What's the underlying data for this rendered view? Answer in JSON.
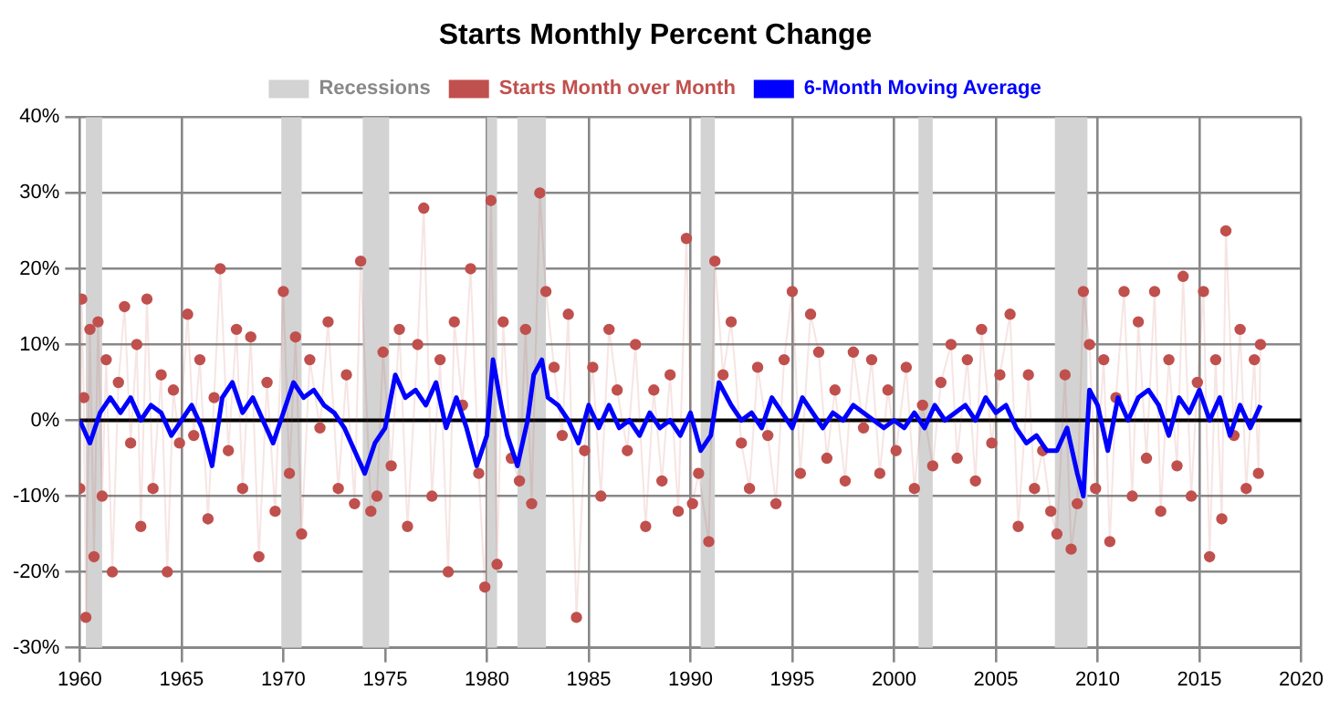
{
  "chart_data": {
    "type": "line",
    "title": "Starts Monthly Percent Change",
    "xlim": [
      1960,
      2020
    ],
    "xticks": [
      1960,
      1965,
      1970,
      1975,
      1980,
      1985,
      1990,
      1995,
      2000,
      2005,
      2010,
      2015,
      2020
    ],
    "ylim": [
      -30,
      40
    ],
    "yticks": [
      {
        "value": -30,
        "label": "-30%"
      },
      {
        "value": -20,
        "label": "-20%"
      },
      {
        "value": -10,
        "label": "-10%"
      },
      {
        "value": 0,
        "label": "0%"
      },
      {
        "value": 10,
        "label": "10%"
      },
      {
        "value": 20,
        "label": "20%"
      },
      {
        "value": 30,
        "label": "30%"
      },
      {
        "value": 40,
        "label": "40%"
      }
    ],
    "grid": true,
    "legend": "top",
    "ref_lines": [
      {
        "axis": "y",
        "value": 0,
        "color": "#000000"
      }
    ],
    "bands": [
      {
        "axis": "x",
        "from": 1960.3,
        "to": 1961.1,
        "label": "Recessions",
        "color": "#d3d3d3"
      },
      {
        "axis": "x",
        "from": 1969.9,
        "to": 1970.9,
        "color": "#d3d3d3"
      },
      {
        "axis": "x",
        "from": 1973.9,
        "to": 1975.2,
        "color": "#d3d3d3"
      },
      {
        "axis": "x",
        "from": 1980.0,
        "to": 1980.5,
        "color": "#d3d3d3"
      },
      {
        "axis": "x",
        "from": 1981.5,
        "to": 1982.9,
        "color": "#d3d3d3"
      },
      {
        "axis": "x",
        "from": 1990.5,
        "to": 1991.2,
        "color": "#d3d3d3"
      },
      {
        "axis": "x",
        "from": 2001.2,
        "to": 2001.9,
        "color": "#d3d3d3"
      },
      {
        "axis": "x",
        "from": 2007.9,
        "to": 2009.5,
        "color": "#d3d3d3"
      }
    ],
    "series": [
      {
        "name": "Starts Month over Month",
        "marker": "circle",
        "color": "#c0504d",
        "x": [
          1960.0,
          1960.1,
          1960.2,
          1960.3,
          1960.5,
          1960.7,
          1960.9,
          1961.1,
          1961.3,
          1961.6,
          1961.9,
          1962.2,
          1962.5,
          1962.8,
          1963.0,
          1963.3,
          1963.6,
          1964.0,
          1964.3,
          1964.6,
          1964.9,
          1965.3,
          1965.6,
          1965.9,
          1966.3,
          1966.6,
          1966.9,
          1967.3,
          1967.7,
          1968.0,
          1968.4,
          1968.8,
          1969.2,
          1969.6,
          1970.0,
          1970.3,
          1970.6,
          1970.9,
          1971.3,
          1971.8,
          1972.2,
          1972.7,
          1973.1,
          1973.5,
          1973.8,
          1974.3,
          1974.6,
          1974.9,
          1975.3,
          1975.7,
          1976.1,
          1976.6,
          1976.9,
          1977.3,
          1977.7,
          1978.1,
          1978.4,
          1978.8,
          1979.2,
          1979.6,
          1979.9,
          1980.2,
          1980.5,
          1980.8,
          1981.2,
          1981.6,
          1981.9,
          1982.2,
          1982.6,
          1982.9,
          1983.3,
          1983.7,
          1984.0,
          1984.4,
          1984.8,
          1985.2,
          1985.6,
          1986.0,
          1986.4,
          1986.9,
          1987.3,
          1987.8,
          1988.2,
          1988.6,
          1989.0,
          1989.4,
          1989.8,
          1990.1,
          1990.4,
          1990.9,
          1991.2,
          1991.6,
          1992.0,
          1992.5,
          1992.9,
          1993.3,
          1993.8,
          1994.2,
          1994.6,
          1995.0,
          1995.4,
          1995.9,
          1996.3,
          1996.7,
          1997.1,
          1997.6,
          1998.0,
          1998.5,
          1998.9,
          1999.3,
          1999.7,
          2000.1,
          2000.6,
          2001.0,
          2001.4,
          2001.9,
          2002.3,
          2002.8,
          2003.1,
          2003.6,
          2004.0,
          2004.3,
          2004.8,
          2005.2,
          2005.7,
          2006.1,
          2006.6,
          2006.9,
          2007.3,
          2007.7,
          2008.0,
          2008.4,
          2008.7,
          2009.0,
          2009.3,
          2009.6,
          2009.9,
          2010.3,
          2010.6,
          2010.9,
          2011.3,
          2011.7,
          2012.0,
          2012.4,
          2012.8,
          2013.1,
          2013.5,
          2013.9,
          2014.2,
          2014.6,
          2014.9,
          2015.2,
          2015.5,
          2015.8,
          2016.1,
          2016.3,
          2016.7,
          2017.0,
          2017.3,
          2017.7,
          2017.9,
          2018.0
        ],
        "values": [
          -9,
          16,
          3,
          -26,
          12,
          -18,
          13,
          -10,
          8,
          -20,
          5,
          15,
          -3,
          10,
          -14,
          16,
          -9,
          6,
          -20,
          4,
          -3,
          14,
          -2,
          8,
          -13,
          3,
          20,
          -4,
          12,
          -9,
          11,
          -18,
          5,
          -12,
          17,
          -7,
          11,
          -15,
          8,
          -1,
          13,
          -9,
          6,
          -11,
          21,
          -12,
          -10,
          9,
          -6,
          12,
          -14,
          10,
          28,
          -10,
          8,
          -20,
          13,
          2,
          20,
          -7,
          -22,
          29,
          -19,
          13,
          -5,
          -8,
          12,
          -11,
          30,
          17,
          7,
          -2,
          14,
          -26,
          -4,
          7,
          -10,
          12,
          4,
          -4,
          10,
          -14,
          4,
          -8,
          6,
          -12,
          24,
          -11,
          -7,
          -16,
          21,
          6,
          13,
          -3,
          -9,
          7,
          -2,
          -11,
          8,
          17,
          -7,
          14,
          9,
          -5,
          4,
          -8,
          9,
          -1,
          8,
          -7,
          4,
          -4,
          7,
          -9,
          2,
          -6,
          5,
          10,
          -5,
          8,
          -8,
          12,
          -3,
          6,
          14,
          -14,
          6,
          -9,
          -4,
          -12,
          -15,
          6,
          -17,
          -11,
          17,
          10,
          -9,
          8,
          -16,
          3,
          17,
          -10,
          13,
          -5,
          17,
          -12,
          8,
          -6,
          19,
          -10,
          5,
          17,
          -18,
          8,
          -13,
          25,
          -2,
          12,
          -9,
          8,
          -7,
          10
        ]
      },
      {
        "name": "6-Month Moving Average",
        "marker": "none",
        "color": "#0000ff",
        "x": [
          1960,
          1960.5,
          1961,
          1961.5,
          1962,
          1962.5,
          1963,
          1963.5,
          1964,
          1964.5,
          1965,
          1965.5,
          1966,
          1966.5,
          1967,
          1967.5,
          1968,
          1968.5,
          1969,
          1969.5,
          1970,
          1970.5,
          1971,
          1971.5,
          1972,
          1972.5,
          1973,
          1973.5,
          1974,
          1974.5,
          1975,
          1975.5,
          1976,
          1976.5,
          1977,
          1977.5,
          1978,
          1978.5,
          1979,
          1979.5,
          1980,
          1980.3,
          1980.7,
          1981,
          1981.5,
          1982,
          1982.3,
          1982.7,
          1983,
          1983.5,
          1984,
          1984.5,
          1985,
          1985.5,
          1986,
          1986.5,
          1987,
          1987.5,
          1988,
          1988.5,
          1989,
          1989.5,
          1990,
          1990.5,
          1991,
          1991.4,
          1992,
          1992.5,
          1993,
          1993.5,
          1994,
          1994.5,
          1995,
          1995.5,
          1996,
          1996.5,
          1997,
          1997.5,
          1998,
          1998.5,
          1999,
          1999.5,
          2000,
          2000.5,
          2001,
          2001.5,
          2002,
          2002.5,
          2003,
          2003.5,
          2004,
          2004.5,
          2005,
          2005.5,
          2006,
          2006.5,
          2007,
          2007.5,
          2008,
          2008.5,
          2009,
          2009.3,
          2009.6,
          2010,
          2010.5,
          2011,
          2011.5,
          2012,
          2012.5,
          2013,
          2013.5,
          2014,
          2014.5,
          2015,
          2015.5,
          2016,
          2016.5,
          2017,
          2017.5,
          2018
        ],
        "values": [
          0,
          -3,
          1,
          3,
          1,
          3,
          0,
          2,
          1,
          -2,
          0,
          2,
          -1,
          -6,
          3,
          5,
          1,
          3,
          0,
          -3,
          1,
          5,
          3,
          4,
          2,
          1,
          -1,
          -4,
          -7,
          -3,
          -1,
          6,
          3,
          4,
          2,
          5,
          -1,
          3,
          -1,
          -6,
          -2,
          8,
          2,
          -2,
          -6,
          0,
          6,
          8,
          3,
          2,
          0,
          -3,
          2,
          -1,
          2,
          -1,
          0,
          -2,
          1,
          -1,
          0,
          -2,
          1,
          -4,
          -2,
          5,
          2,
          0,
          1,
          -1,
          3,
          1,
          -1,
          3,
          1,
          -1,
          1,
          0,
          2,
          1,
          0,
          -1,
          0,
          -1,
          1,
          -1,
          2,
          0,
          1,
          2,
          0,
          3,
          1,
          2,
          -1,
          -3,
          -2,
          -4,
          -4,
          -1,
          -7,
          -10,
          4,
          2,
          -4,
          3,
          0,
          3,
          4,
          2,
          -2,
          3,
          1,
          4,
          0,
          3,
          -2,
          2,
          -1,
          2
        ]
      }
    ]
  }
}
